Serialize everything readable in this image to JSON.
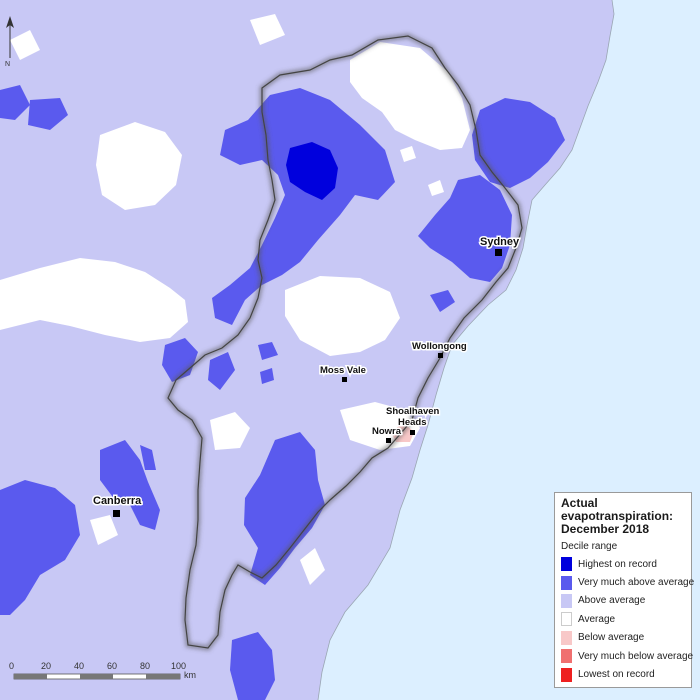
{
  "places": {
    "sydney": "Sydney",
    "wollongong": "Wollongong",
    "moss_vale": "Moss Vale",
    "shoalhaven": "Shoalhaven",
    "heads": "Heads",
    "nowra": "Nowra",
    "canberra": "Canberra"
  },
  "legend": {
    "title_line1": "Actual",
    "title_line2": "evapotranspiration:",
    "title_line3": "December 2018",
    "subtitle": "Decile range",
    "items": [
      {
        "label": "Highest on record",
        "color": "#0000dd"
      },
      {
        "label": "Very much above average",
        "color": "#5a5aee"
      },
      {
        "label": "Above average",
        "color": "#c8c8f5"
      },
      {
        "label": "Average",
        "color": "#ffffff"
      },
      {
        "label": "Below average",
        "color": "#f8c8c8"
      },
      {
        "label": "Very much below average",
        "color": "#f07070"
      },
      {
        "label": "Lowest on record",
        "color": "#ee2020"
      }
    ]
  },
  "scale": {
    "ticks": [
      "0",
      "20",
      "40",
      "60",
      "80",
      "100"
    ],
    "unit": "km"
  },
  "north_arrow_label": "N",
  "colors": {
    "ocean": "#dcefff",
    "above_average": "#c8c8f5",
    "very_much_above": "#5a5aee",
    "highest": "#0000dd",
    "below_average": "#f8c8c8",
    "average": "#ffffff"
  }
}
